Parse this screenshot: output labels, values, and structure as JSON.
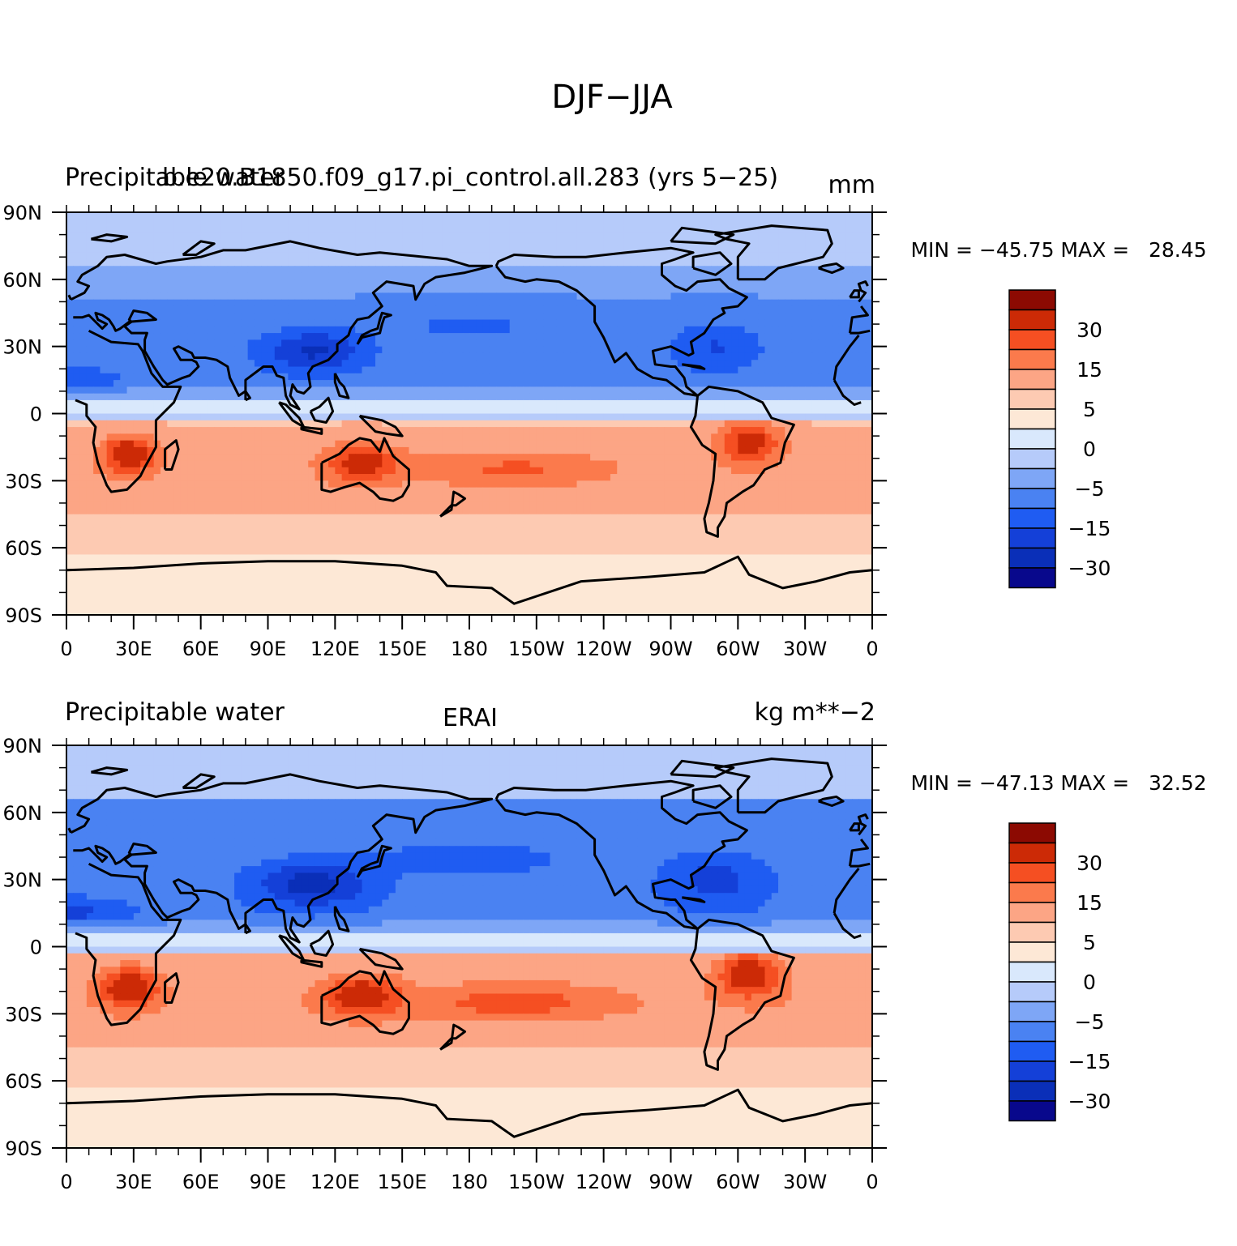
{
  "figure": {
    "title": "DJF−JJA"
  },
  "colors": {
    "palette": [
      "#08088c",
      "#0a2fb8",
      "#1440d8",
      "#1f5cf2",
      "#4a82f2",
      "#7ea6f6",
      "#b6cbfa",
      "#d9e8fc",
      "#fde8d6",
      "#fdcab2",
      "#fca585",
      "#fb7a4c",
      "#f54f22",
      "#cc2a06",
      "#8c0a02"
    ],
    "land_outline": "#000000"
  },
  "chart_data": [
    {
      "type": "heatmap",
      "title_left": "Precipitable water",
      "title_center": "b.e20.B1850.f09_g17.pi_control.all.283 (yrs 5−25)",
      "title_right": "mm",
      "min_max": "MIN = −45.75 MAX =   28.45",
      "x_ticks": [
        "0",
        "30E",
        "60E",
        "90E",
        "120E",
        "150E",
        "180",
        "150W",
        "120W",
        "90W",
        "60W",
        "30W",
        "0"
      ],
      "y_ticks": [
        "90N",
        "60N",
        "30N",
        "0",
        "30S",
        "60S",
        "90S"
      ],
      "xlim": [
        0,
        360
      ],
      "ylim": [
        -90,
        90
      ],
      "colorbar": {
        "levels": [
          -40,
          -30,
          -25,
          -20,
          -15,
          -10,
          -5,
          -2,
          0,
          2,
          5,
          10,
          15,
          20,
          30,
          40
        ],
        "labels": [
          "30",
          "15",
          "5",
          "0",
          "−5",
          "−15",
          "−30"
        ]
      },
      "regions": {
        "nh_band": -12,
        "deep_nh": -30,
        "sh_band": 5,
        "strong_sh": 20,
        "antarctic": 1
      }
    },
    {
      "type": "heatmap",
      "title_left": "Precipitable water",
      "title_center": "ERAI",
      "title_right": "kg m**−2",
      "min_max": "MIN = −47.13 MAX =   32.52",
      "x_ticks": [
        "0",
        "30E",
        "60E",
        "90E",
        "120E",
        "150E",
        "180",
        "150W",
        "120W",
        "90W",
        "60W",
        "30W",
        "0"
      ],
      "y_ticks": [
        "90N",
        "60N",
        "30N",
        "0",
        "30S",
        "60S",
        "90S"
      ],
      "xlim": [
        0,
        360
      ],
      "ylim": [
        -90,
        90
      ],
      "colorbar": {
        "levels": [
          -40,
          -30,
          -25,
          -20,
          -15,
          -10,
          -5,
          -2,
          0,
          2,
          5,
          10,
          15,
          20,
          30,
          40
        ],
        "labels": [
          "30",
          "15",
          "5",
          "0",
          "−5",
          "−15",
          "−30"
        ]
      },
      "regions": {
        "nh_band": -14,
        "deep_nh": -32,
        "sh_band": 6,
        "strong_sh": 22,
        "antarctic": 1
      }
    }
  ]
}
